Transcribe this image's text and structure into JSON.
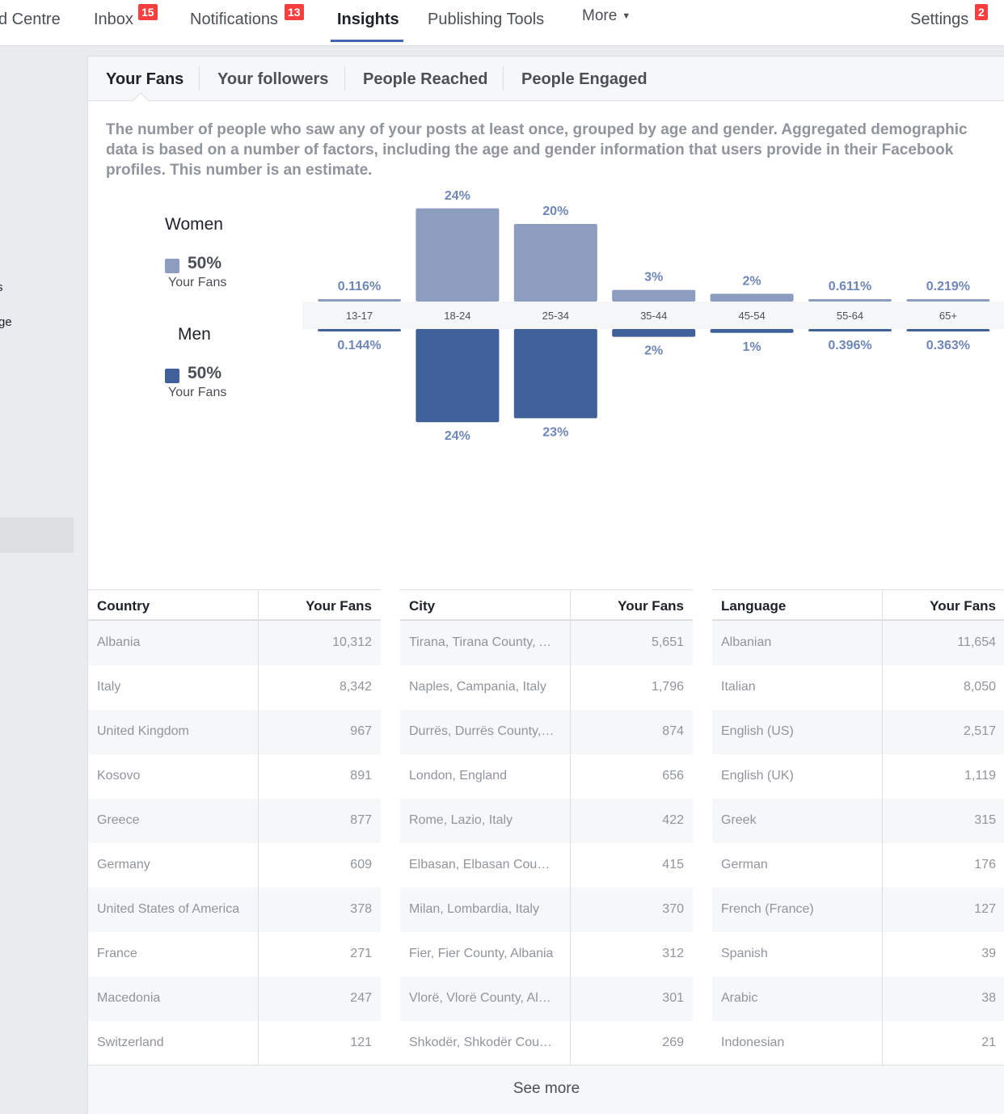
{
  "nav": {
    "items": [
      {
        "label": "d Centre"
      },
      {
        "label": "Inbox",
        "badge": "15"
      },
      {
        "label": "Notifications",
        "badge": "13"
      },
      {
        "label": "Insights"
      },
      {
        "label": "Publishing Tools"
      },
      {
        "label": "More"
      },
      {
        "label": "Settings",
        "badge": "2"
      }
    ]
  },
  "sidebar": {
    "fragments": [
      "s",
      "ge"
    ]
  },
  "subtabs": [
    "Your Fans",
    "Your followers",
    "People Reached",
    "People Engaged"
  ],
  "description": "The number of people who saw any of your posts at least once, grouped by age and gender. Aggregated demographic data is based on a number of factors, including the age and gender information that users provide in their Facebook profiles. This number is an estimate.",
  "legend": {
    "women": {
      "title": "Women",
      "pct": "50%",
      "sub": "Your Fans"
    },
    "men": {
      "title": "Men",
      "pct": "50%",
      "sub": "Your Fans"
    }
  },
  "colors": {
    "women": "#8c9dc0",
    "men": "#40609a",
    "accent": "#4267b2",
    "badge": "#fa3e3e"
  },
  "chart_data": {
    "type": "bar",
    "categories": [
      "13-17",
      "18-24",
      "25-34",
      "35-44",
      "45-54",
      "55-64",
      "65+"
    ],
    "series": [
      {
        "name": "Women",
        "values": [
          0.116,
          24,
          20,
          3,
          2,
          0.611,
          0.219
        ],
        "labels": [
          "0.116%",
          "24%",
          "20%",
          "3%",
          "2%",
          "0.611%",
          "0.219%"
        ]
      },
      {
        "name": "Men",
        "values": [
          0.144,
          24,
          23,
          2,
          1,
          0.396,
          0.363
        ],
        "labels": [
          "0.144%",
          "24%",
          "23%",
          "2%",
          "1%",
          "0.396%",
          "0.363%"
        ]
      }
    ]
  },
  "tables": [
    {
      "col1": "Country",
      "col2": "Your Fans",
      "rows": [
        [
          "Albania",
          "10,312"
        ],
        [
          "Italy",
          "8,342"
        ],
        [
          "United Kingdom",
          "967"
        ],
        [
          "Kosovo",
          "891"
        ],
        [
          "Greece",
          "877"
        ],
        [
          "Germany",
          "609"
        ],
        [
          "United States of America",
          "378"
        ],
        [
          "France",
          "271"
        ],
        [
          "Macedonia",
          "247"
        ],
        [
          "Switzerland",
          "121"
        ]
      ]
    },
    {
      "col1": "City",
      "col2": "Your Fans",
      "rows": [
        [
          "Tirana, Tirana County, Albania",
          "5,651"
        ],
        [
          "Naples, Campania, Italy",
          "1,796"
        ],
        [
          "Durrës, Durrës County, Albania",
          "874"
        ],
        [
          "London, England",
          "656"
        ],
        [
          "Rome, Lazio, Italy",
          "422"
        ],
        [
          "Elbasan, Elbasan County, Albania",
          "415"
        ],
        [
          "Milan, Lombardia, Italy",
          "370"
        ],
        [
          "Fier, Fier County, Albania",
          "312"
        ],
        [
          "Vlorë, Vlorë County, Albania",
          "301"
        ],
        [
          "Shkodër, Shkodër County, Albania",
          "269"
        ]
      ]
    },
    {
      "col1": "Language",
      "col2": "Your Fans",
      "rows": [
        [
          "Albanian",
          "11,654"
        ],
        [
          "Italian",
          "8,050"
        ],
        [
          "English (US)",
          "2,517"
        ],
        [
          "English (UK)",
          "1,119"
        ],
        [
          "Greek",
          "315"
        ],
        [
          "German",
          "176"
        ],
        [
          "French (France)",
          "127"
        ],
        [
          "Spanish",
          "39"
        ],
        [
          "Arabic",
          "38"
        ],
        [
          "Indonesian",
          "21"
        ]
      ]
    }
  ],
  "see_more": "See more"
}
